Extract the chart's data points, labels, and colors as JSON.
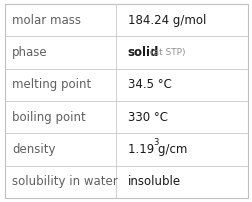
{
  "rows": [
    {
      "label": "molar mass",
      "value": "184.24 g/mol",
      "superscript": null,
      "extra": null
    },
    {
      "label": "phase",
      "value": "solid",
      "superscript": null,
      "extra": "(at STP)"
    },
    {
      "label": "melting point",
      "value": "34.5 °C",
      "superscript": null,
      "extra": null
    },
    {
      "label": "boiling point",
      "value": "330 °C",
      "superscript": null,
      "extra": null
    },
    {
      "label": "density",
      "value": "1.19 g/cm",
      "superscript": "3",
      "extra": null
    },
    {
      "label": "solubility in water",
      "value": "insoluble",
      "superscript": null,
      "extra": null
    }
  ],
  "background_color": "#ffffff",
  "border_color": "#c0c0c0",
  "line_color": "#c8c8c8",
  "label_color": "#606060",
  "value_color": "#1a1a1a",
  "extra_color": "#909090",
  "col_split": 0.455,
  "label_fontsize": 8.5,
  "value_fontsize": 8.5,
  "extra_fontsize": 6.5,
  "superscript_fontsize": 6.0,
  "figwidth": 2.53,
  "figheight": 2.02,
  "dpi": 100
}
